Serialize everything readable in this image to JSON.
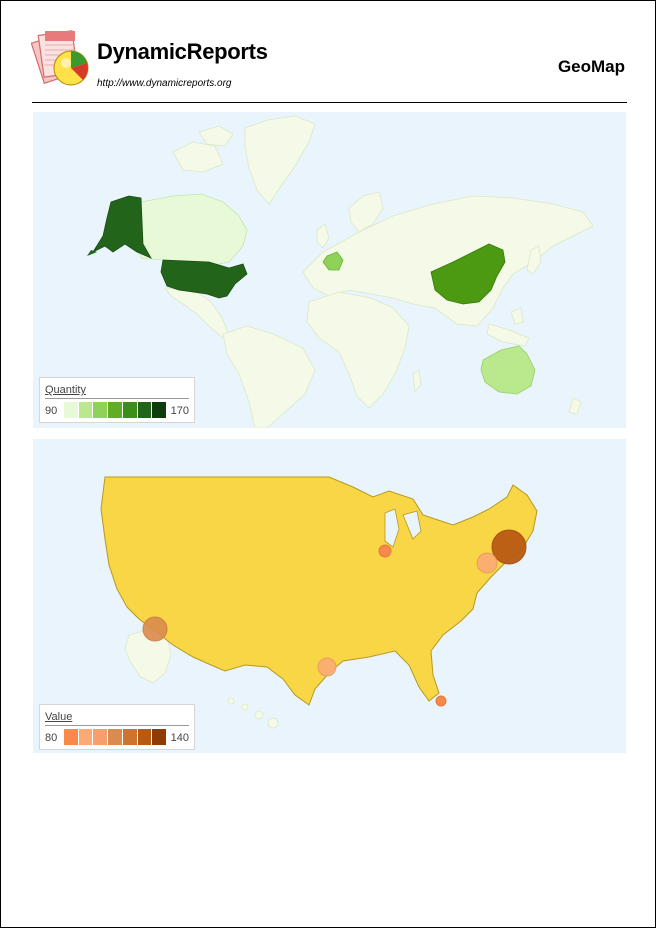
{
  "header": {
    "brand": "DynamicReports",
    "url": "http://www.dynamicreports.org",
    "title": "GeoMap"
  },
  "colors": {
    "ocean": "#e9f4fc",
    "land": "#f5fae8",
    "border": "#dbe8c6",
    "us_fill": "#f9d646",
    "quantity_scale": [
      "#e8f9d8",
      "#b9e98c",
      "#8fd25a",
      "#5fae24",
      "#3b8f18",
      "#22641a",
      "#0e3d0c"
    ],
    "value_scale": [
      "#f8894b",
      "#fbaa74",
      "#f5a06c",
      "#db8b4d",
      "#cd7430",
      "#b85a12",
      "#8e3c05"
    ]
  },
  "world_map": {
    "legend": {
      "title": "Quantity",
      "min": "90",
      "max": "170"
    },
    "regions": [
      {
        "name": "Alaska (USA)",
        "quantity": 170
      },
      {
        "name": "USA",
        "quantity": 170
      },
      {
        "name": "China",
        "quantity": 150
      },
      {
        "name": "France",
        "quantity": 120
      },
      {
        "name": "Canada",
        "quantity": 95
      },
      {
        "name": "Australia",
        "quantity": 100
      }
    ]
  },
  "us_map": {
    "legend": {
      "title": "Value",
      "min": "80",
      "max": "140"
    },
    "markers": [
      {
        "name": "New York",
        "value": 140
      },
      {
        "name": "Philadelphia",
        "value": 95
      },
      {
        "name": "Chicago",
        "value": 85
      },
      {
        "name": "Los Angeles",
        "value": 120
      },
      {
        "name": "Houston",
        "value": 95
      },
      {
        "name": "Miami",
        "value": 80
      }
    ]
  }
}
